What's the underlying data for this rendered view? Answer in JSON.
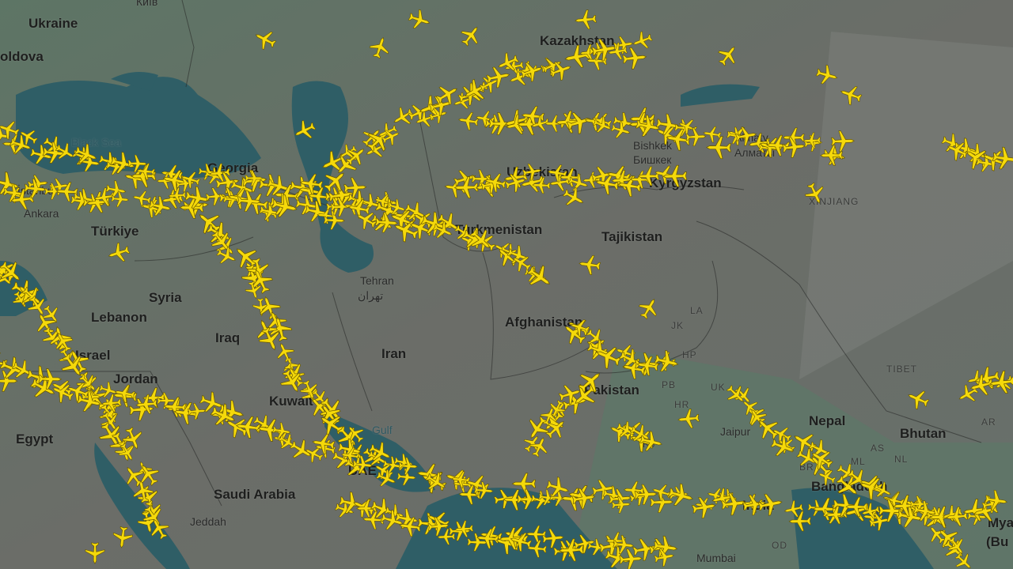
{
  "map": {
    "plane_color": "#f5d90a",
    "plane_outline": "#6b5a00",
    "land_color": "#6b6d68",
    "land_green": "#5f7466",
    "water_color": "#2f5e66",
    "labels": {
      "kyiv": "Київ",
      "ukraine": "Ukraine",
      "moldova": "oldova",
      "black_sea": "Black Sea",
      "georgia": "Georgia",
      "istanbul": "İstanbul",
      "ankara": "Ankara",
      "turkiye": "Türkiye",
      "syria": "Syria",
      "lebanon": "Lebanon",
      "israel": "Israel",
      "jordan": "Jordan",
      "egypt": "Egypt",
      "iraq": "Iraq",
      "iran": "Iran",
      "tehran": "Tehran",
      "tehran_local": "تهران",
      "kuwait": "Kuwait",
      "gulf": "Gulf",
      "saudi_arabia": "Saudi Arabia",
      "jeddah": "Jeddah",
      "uae": "UAE",
      "kazakhstan": "Kazakhstan",
      "uzbekistan": "Uzbekistan",
      "turkmenistan": "Turkmenistan",
      "bishkek": "Bishkek",
      "bishkek_local": "Бишкек",
      "almaty": "Almaty",
      "almaty_local": "Алматы",
      "kyrgyzstan": "Kyrgyzstan",
      "tajikistan": "Tajikistan",
      "afghanistan": "Afghanistan",
      "pakistan": "Pakistan",
      "xinjiang": "XINJIANG",
      "la": "LA",
      "jk": "JK",
      "hp": "HP",
      "pb": "PB",
      "hr": "HR",
      "uk": "UK",
      "rj": "RJ",
      "jaipur": "Jaipur",
      "tibet": "TIBET",
      "nepal": "Nepal",
      "bhutan": "Bhutan",
      "br": "BR",
      "as": "AS",
      "ml": "ML",
      "nl": "NL",
      "ar": "AR",
      "mt": "MT",
      "od": "OD",
      "bangladesh": "Bangladesh",
      "india": "India",
      "mumbai": "Mumbai",
      "myanmar": "Myan",
      "burma": "(Bu"
    }
  }
}
